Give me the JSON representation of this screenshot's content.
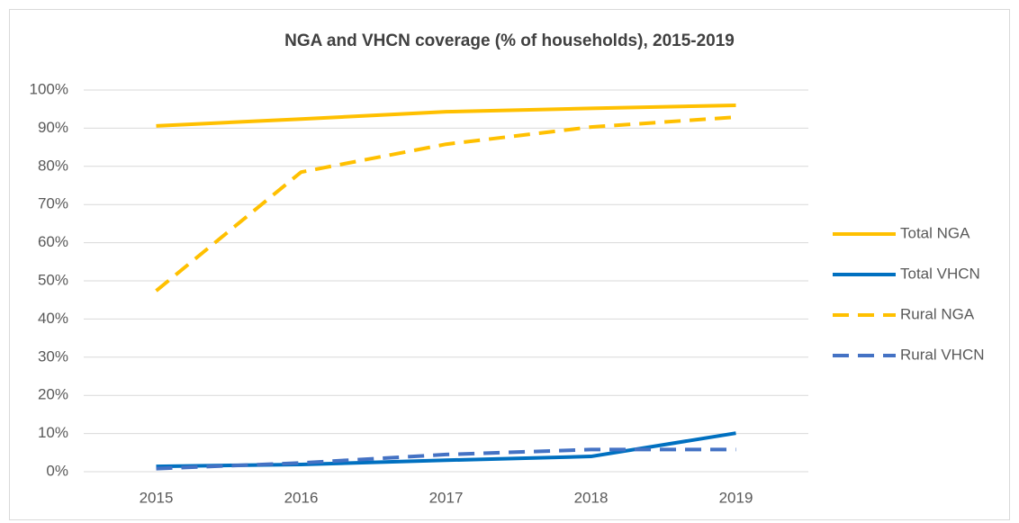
{
  "chart_data": {
    "type": "line",
    "title": "NGA and VHCN coverage (% of households), 2015-2019",
    "categories": [
      "2015",
      "2016",
      "2017",
      "2018",
      "2019"
    ],
    "series": [
      {
        "name": "Total NGA",
        "color": "#FFC000",
        "dashed": false,
        "values": [
          90.6,
          92.4,
          94.3,
          95.2,
          96.0
        ]
      },
      {
        "name": "Total VHCN",
        "color": "#0070C0",
        "dashed": false,
        "values": [
          1.4,
          1.9,
          3.0,
          4.0,
          10.1
        ]
      },
      {
        "name": "Rural NGA",
        "color": "#FFC000",
        "dashed": true,
        "values": [
          47.4,
          78.5,
          85.8,
          90.3,
          92.9
        ]
      },
      {
        "name": "Rural VHCN",
        "color": "#4472C4",
        "dashed": true,
        "values": [
          0.8,
          2.3,
          4.5,
          5.8,
          5.8
        ]
      }
    ],
    "ylim": [
      0,
      100
    ],
    "yticks": [
      {
        "value": 0,
        "label": "0%"
      },
      {
        "value": 10,
        "label": "10%"
      },
      {
        "value": 20,
        "label": "20%"
      },
      {
        "value": 30,
        "label": "30%"
      },
      {
        "value": 40,
        "label": "40%"
      },
      {
        "value": 50,
        "label": "50%"
      },
      {
        "value": 60,
        "label": "60%"
      },
      {
        "value": 70,
        "label": "70%"
      },
      {
        "value": 80,
        "label": "80%"
      },
      {
        "value": 90,
        "label": "90%"
      },
      {
        "value": 100,
        "label": "100%"
      }
    ],
    "grid": true,
    "legend": "right"
  }
}
